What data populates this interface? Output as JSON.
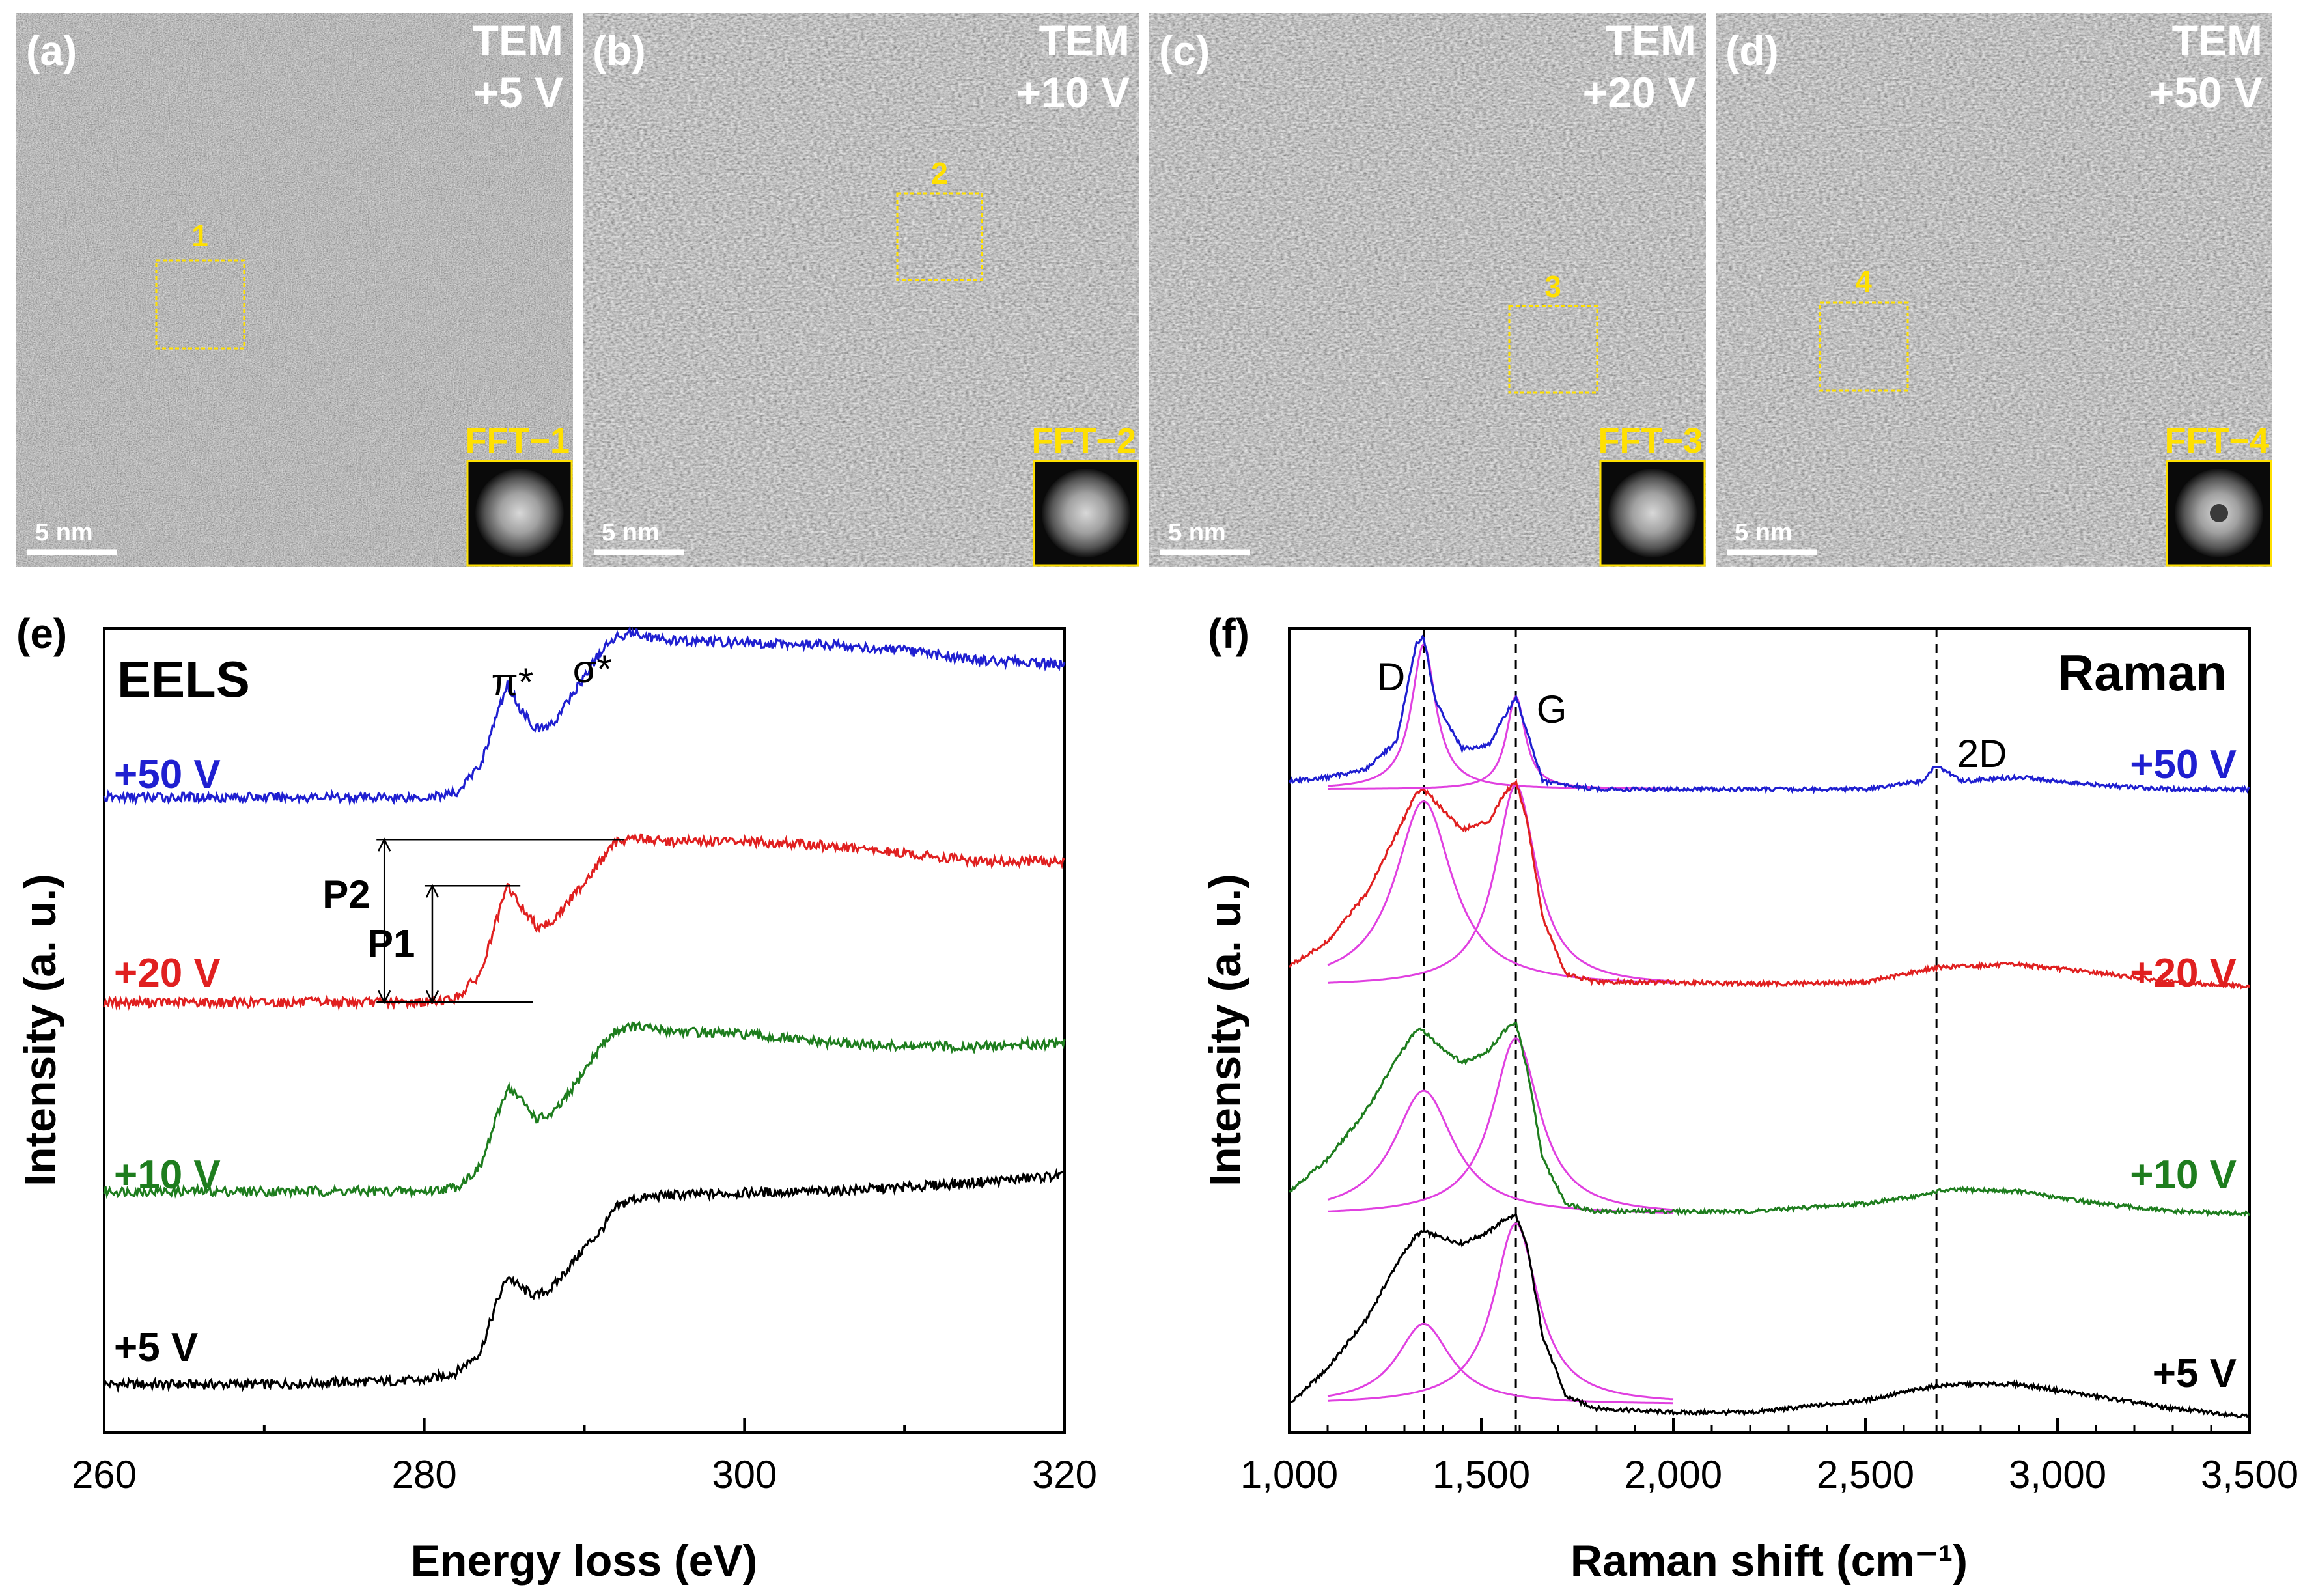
{
  "tem_panels": [
    {
      "label": "(a)",
      "mode": "TEM",
      "voltage": "+5 V",
      "box_number": "1",
      "fft_label": "FFT−1",
      "scale_bar": "5 nm"
    },
    {
      "label": "(b)",
      "mode": "TEM",
      "voltage": "+10 V",
      "box_number": "2",
      "fft_label": "FFT−2",
      "scale_bar": "5 nm"
    },
    {
      "label": "(c)",
      "mode": "TEM",
      "voltage": "+20 V",
      "box_number": "3",
      "fft_label": "FFT−3",
      "scale_bar": "5 nm"
    },
    {
      "label": "(d)",
      "mode": "TEM",
      "voltage": "+50 V",
      "box_number": "4",
      "fft_label": "FFT−4",
      "scale_bar": "5 nm"
    }
  ],
  "colors": {
    "v5": "#000000",
    "v10": "#1e7d1e",
    "v20": "#e02020",
    "v50": "#1f1fd0",
    "fit": "#e040e0",
    "highlight": "#ffe000"
  },
  "chart_data": [
    {
      "type": "line",
      "panel_label": "(e)",
      "title": "EELS",
      "xlabel": "Energy loss (eV)",
      "ylabel": "Intensity (a. u.)",
      "xlim": [
        260,
        320
      ],
      "ylim": [
        0,
        10
      ],
      "xticks": [
        "260",
        "280",
        "300",
        "320"
      ],
      "x": [
        260,
        270,
        280,
        282,
        283.5,
        284.5,
        285.2,
        286,
        287,
        288,
        289,
        290,
        291,
        292,
        293,
        295,
        300,
        305,
        310,
        315,
        320
      ],
      "series": [
        {
          "name": "+5 V",
          "color_key": "v5",
          "values": [
            0.6,
            0.6,
            0.65,
            0.75,
            1.0,
            1.6,
            1.95,
            1.8,
            1.7,
            1.8,
            2.05,
            2.3,
            2.5,
            2.8,
            2.9,
            2.95,
            2.98,
            3.0,
            3.05,
            3.12,
            3.2
          ]
        },
        {
          "name": "+10 V",
          "color_key": "v10",
          "values": [
            3.0,
            3.0,
            3.0,
            3.05,
            3.3,
            3.9,
            4.3,
            4.15,
            3.9,
            3.95,
            4.2,
            4.5,
            4.8,
            5.0,
            5.05,
            5.0,
            4.95,
            4.85,
            4.8,
            4.8,
            4.85
          ]
        },
        {
          "name": "+20 V",
          "color_key": "v20",
          "values": [
            5.35,
            5.35,
            5.35,
            5.4,
            5.7,
            6.35,
            6.8,
            6.55,
            6.3,
            6.35,
            6.6,
            6.85,
            7.1,
            7.35,
            7.4,
            7.35,
            7.35,
            7.3,
            7.2,
            7.1,
            7.1
          ]
        },
        {
          "name": "+50 V",
          "color_key": "v50",
          "values": [
            7.9,
            7.9,
            7.9,
            7.95,
            8.3,
            8.9,
            9.3,
            9.0,
            8.75,
            8.8,
            9.1,
            9.4,
            9.7,
            9.9,
            9.95,
            9.85,
            9.82,
            9.8,
            9.72,
            9.6,
            9.55
          ]
        }
      ],
      "annotations": {
        "pi_star": "π*",
        "sigma_star": "σ*",
        "p1": "P1",
        "p2": "P2",
        "p_energies_ev": [
          284.5,
          290
        ]
      }
    },
    {
      "type": "line",
      "panel_label": "(f)",
      "title": "Raman",
      "xlabel": "Raman shift (cm⁻¹)",
      "ylabel": "Intensity (a. u.)",
      "xlim": [
        1000,
        3500
      ],
      "ylim": [
        0,
        10
      ],
      "xticks": [
        "1,000",
        "1,500",
        "2,000",
        "2,500",
        "3,000",
        "3,500"
      ],
      "peak_positions": {
        "D": 1350,
        "G": 1590,
        "2D": 2685
      },
      "peak_labels": [
        "D",
        "G",
        "2D"
      ],
      "x": [
        1000,
        1100,
        1200,
        1280,
        1330,
        1350,
        1380,
        1450,
        1520,
        1560,
        1590,
        1620,
        1660,
        1720,
        1800,
        2000,
        2200,
        2500,
        2650,
        2685,
        2750,
        2900,
        3100,
        3300,
        3500
      ],
      "series": [
        {
          "name": "+5 V",
          "color_key": "v5",
          "values": [
            0.35,
            0.8,
            1.4,
            2.1,
            2.45,
            2.5,
            2.45,
            2.35,
            2.5,
            2.65,
            2.7,
            2.3,
            1.2,
            0.45,
            0.3,
            0.25,
            0.25,
            0.4,
            0.55,
            0.58,
            0.6,
            0.6,
            0.45,
            0.3,
            0.2
          ]
        },
        {
          "name": "+10 V",
          "color_key": "v10",
          "values": [
            3.0,
            3.4,
            4.0,
            4.65,
            5.0,
            5.0,
            4.85,
            4.6,
            4.75,
            5.0,
            5.1,
            4.5,
            3.4,
            2.85,
            2.75,
            2.75,
            2.75,
            2.85,
            2.95,
            3.0,
            3.02,
            3.0,
            2.85,
            2.75,
            2.72
          ]
        },
        {
          "name": "+20 V",
          "color_key": "v20",
          "values": [
            5.8,
            6.1,
            6.7,
            7.45,
            7.95,
            8.0,
            7.85,
            7.5,
            7.6,
            7.95,
            8.1,
            7.6,
            6.4,
            5.7,
            5.6,
            5.6,
            5.58,
            5.6,
            5.75,
            5.78,
            5.8,
            5.82,
            5.72,
            5.6,
            5.55
          ]
        },
        {
          "name": "+50 V",
          "color_key": "v50",
          "values": [
            8.1,
            8.15,
            8.25,
            8.6,
            9.8,
            9.9,
            9.1,
            8.5,
            8.55,
            8.9,
            9.15,
            8.7,
            8.1,
            8.05,
            8.0,
            8.0,
            8.0,
            8.0,
            8.1,
            8.3,
            8.1,
            8.15,
            8.05,
            8.0,
            8.0
          ]
        }
      ]
    }
  ],
  "raman_series_labels": [
    "+50 V",
    "+20 V",
    "+10 V",
    "+5 V"
  ],
  "eels_series_labels": [
    "+50 V",
    "+20 V",
    "+10 V",
    "+5 V"
  ]
}
